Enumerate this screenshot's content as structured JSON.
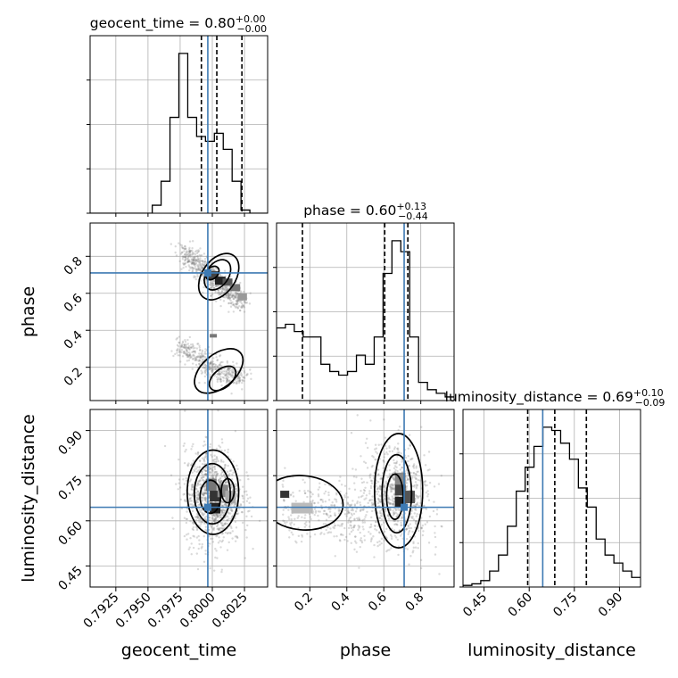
{
  "chart_data": {
    "type": "corner",
    "parameters": [
      "geocent_time",
      "phase",
      "luminosity_distance"
    ],
    "titles": [
      {
        "name": "geocent_time",
        "median": "0.80",
        "plus": "+0.00",
        "minus": "−0.00"
      },
      {
        "name": "phase",
        "median": "0.60",
        "plus": "+0.13",
        "minus": "−0.44"
      },
      {
        "name": "luminosity_distance",
        "median": "0.69",
        "plus": "+0.10",
        "minus": "−0.09"
      }
    ],
    "ranges": {
      "geocent_time": [
        0.7905,
        0.8043
      ],
      "phase": [
        0.02,
        0.98
      ],
      "luminosity_distance": [
        0.38,
        0.97
      ]
    },
    "ticks": {
      "geocent_time": [
        "0.7925",
        "0.7950",
        "0.7975",
        "0.8000",
        "0.8025"
      ],
      "phase": [
        "0.2",
        "0.4",
        "0.6",
        "0.8"
      ],
      "luminosity_distance": [
        "0.45",
        "0.60",
        "0.75",
        "0.90"
      ]
    },
    "truths": {
      "geocent_time": 0.79965,
      "phase": 0.71,
      "luminosity_distance": 0.645
    },
    "quantiles": {
      "geocent_time": [
        0.79915,
        0.80035,
        0.8023
      ],
      "phase": [
        0.16,
        0.605,
        0.73
      ],
      "luminosity_distance": [
        0.595,
        0.685,
        0.79
      ]
    },
    "histograms": {
      "geocent_time": {
        "start": 0.7905,
        "step": 0.00069,
        "counts": [
          0,
          0,
          0,
          0,
          0,
          0,
          0,
          0.05,
          0.2,
          0.6,
          1.0,
          0.6,
          0.48,
          0.45,
          0.5,
          0.4,
          0.2,
          0.02,
          0,
          0
        ]
      },
      "phase": {
        "start": 0.02,
        "step": 0.048,
        "counts": [
          0.4,
          0.42,
          0.38,
          0.35,
          0.35,
          0.2,
          0.16,
          0.14,
          0.16,
          0.25,
          0.2,
          0.35,
          0.7,
          0.88,
          0.82,
          0.35,
          0.1,
          0.06,
          0.04,
          0.02
        ]
      },
      "luminosity_distance": {
        "start": 0.38,
        "step": 0.0295,
        "counts": [
          0.01,
          0.02,
          0.04,
          0.1,
          0.2,
          0.38,
          0.6,
          0.75,
          0.88,
          1.0,
          0.98,
          0.9,
          0.8,
          0.62,
          0.5,
          0.3,
          0.2,
          0.15,
          0.1,
          0.06
        ]
      }
    }
  }
}
